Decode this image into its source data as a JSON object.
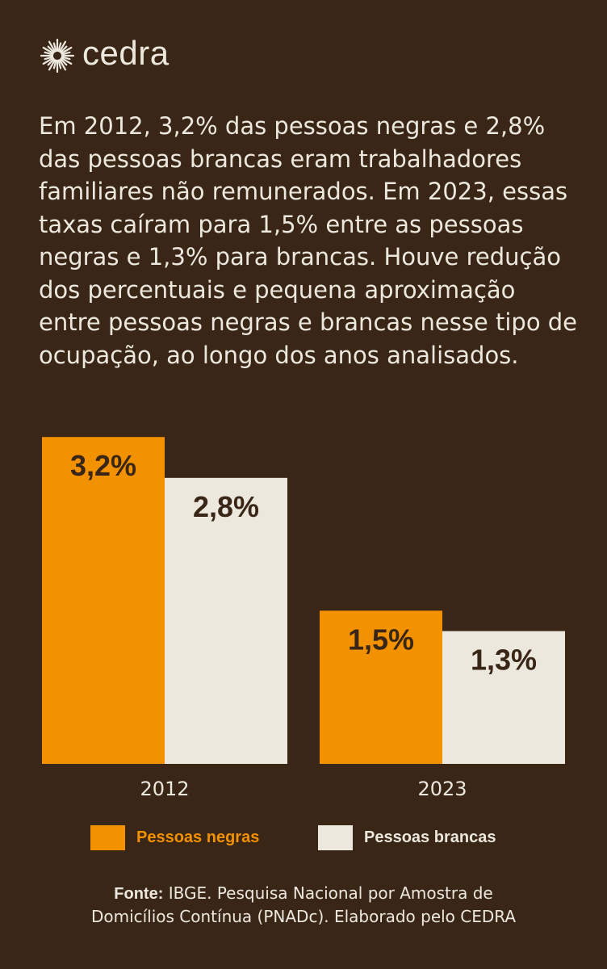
{
  "brand": {
    "name": "cedra",
    "icon": "sun-burst-icon"
  },
  "intro_text": "Em 2012, 3,2% das pessoas negras e 2,8% das pessoas brancas eram trabalhadores familiares não remunerados. Em 2023, essas taxas caíram para 1,5% entre as pessoas negras e 1,3% para brancas. Houve redução dos percentuais e pequena aproximação entre pessoas negras e brancas nesse tipo de ocupação, ao longo dos anos analisados.",
  "colors": {
    "background": "#3a2617",
    "negras": "#f39200",
    "brancas": "#ece8dd",
    "label_dark": "#3a2617",
    "text_light": "#ece8dd"
  },
  "chart_data": {
    "type": "bar",
    "categories": [
      "2012",
      "2023"
    ],
    "series": [
      {
        "name": "Pessoas negras",
        "values": [
          3.2,
          1.5
        ],
        "labels": [
          "3,2%",
          "1,5%"
        ]
      },
      {
        "name": "Pessoas brancas",
        "values": [
          2.8,
          1.3
        ],
        "labels": [
          "2,8%",
          "1,3%"
        ]
      }
    ],
    "ylim": [
      0,
      3.5
    ],
    "grid": false,
    "legend_position": "bottom"
  },
  "legend": {
    "negras": "Pessoas negras",
    "brancas": "Pessoas brancas"
  },
  "source": {
    "label": "Fonte:",
    "line1": "IBGE. Pesquisa Nacional por Amostra de",
    "line2": "Domicílios Contínua (PNADc). Elaborado pelo CEDRA"
  }
}
